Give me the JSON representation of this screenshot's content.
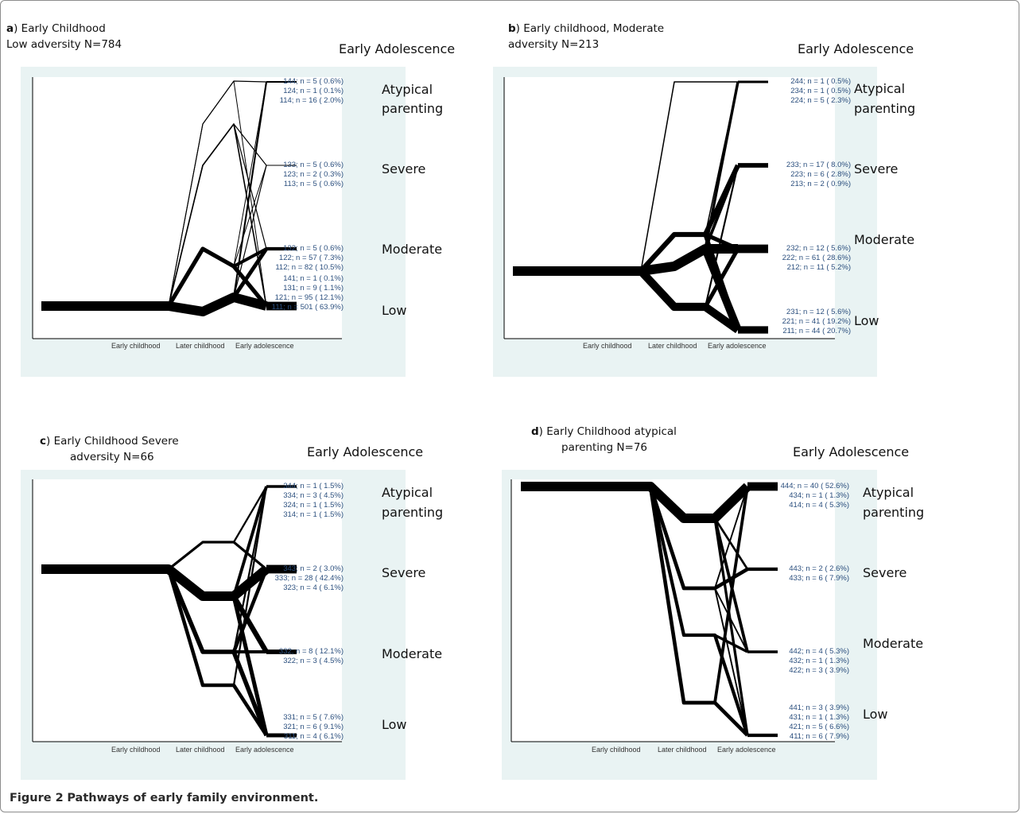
{
  "caption": {
    "label": "Figure 2",
    "text": "Pathways of early family environment."
  },
  "colors": {
    "panel_bg": "#e9f3f3",
    "line": "#000000",
    "label_blue": "#2b4f7e"
  },
  "chart_data": [
    {
      "type": "line",
      "panel_letter": "a",
      "title_line1": ") Early Childhood",
      "title_line2": "Low adversity N=784",
      "header": "Early Adolescence",
      "x": [
        "Early childhood",
        "Later childhood",
        "Early adolescence"
      ],
      "categories": [
        "Atypical parenting",
        "Severe",
        "Moderate",
        "Low"
      ],
      "start_level": 1,
      "paths": [
        {
          "code": "144",
          "n": 5,
          "pct": "0.6%",
          "levels": [
            1,
            4,
            4,
            4
          ]
        },
        {
          "code": "124",
          "n": 1,
          "pct": "0.1%",
          "levels": [
            1,
            2,
            4,
            4
          ]
        },
        {
          "code": "114",
          "n": 16,
          "pct": "2.0%",
          "levels": [
            1,
            1,
            4,
            4
          ]
        },
        {
          "code": "133",
          "n": 5,
          "pct": "0.6%",
          "levels": [
            1,
            3,
            3,
            3
          ]
        },
        {
          "code": "123",
          "n": 2,
          "pct": "0.3%",
          "levels": [
            1,
            2,
            3,
            3
          ]
        },
        {
          "code": "113",
          "n": 5,
          "pct": "0.6%",
          "levels": [
            1,
            1,
            3,
            3
          ]
        },
        {
          "code": "132",
          "n": 5,
          "pct": "0.6%",
          "levels": [
            1,
            3,
            2,
            2
          ]
        },
        {
          "code": "122",
          "n": 57,
          "pct": "7.3%",
          "levels": [
            1,
            2,
            2,
            2
          ]
        },
        {
          "code": "112",
          "n": 82,
          "pct": "10.5%",
          "levels": [
            1,
            1,
            2,
            2
          ]
        },
        {
          "code": "141",
          "n": 1,
          "pct": "0.1%",
          "levels": [
            1,
            4,
            1,
            1
          ]
        },
        {
          "code": "131",
          "n": 9,
          "pct": "1.1%",
          "levels": [
            1,
            3,
            1,
            1
          ]
        },
        {
          "code": "121",
          "n": 95,
          "pct": "12.1%",
          "levels": [
            1,
            2,
            1,
            1
          ]
        },
        {
          "code": "111",
          "n": 501,
          "pct": "63.9%",
          "levels": [
            1,
            1,
            1,
            1
          ]
        }
      ]
    },
    {
      "type": "line",
      "panel_letter": "b",
      "title_line1": ") Early childhood, Moderate",
      "title_line2": "adversity N=213",
      "header": "Early Adolescence",
      "x": [
        "Early childhood",
        "Later childhood",
        "Early adolescence"
      ],
      "categories": [
        "Atypical parenting",
        "Severe",
        "Moderate",
        "Low"
      ],
      "start_level": 2,
      "paths": [
        {
          "code": "244",
          "n": 1,
          "pct": "0.5%",
          "levels": [
            2,
            4,
            4,
            4
          ]
        },
        {
          "code": "234",
          "n": 1,
          "pct": "0.5%",
          "levels": [
            2,
            3,
            4,
            4
          ]
        },
        {
          "code": "224",
          "n": 5,
          "pct": "2.3%",
          "levels": [
            2,
            2,
            4,
            4
          ]
        },
        {
          "code": "233",
          "n": 17,
          "pct": "8.0%",
          "levels": [
            2,
            3,
            3,
            3
          ]
        },
        {
          "code": "223",
          "n": 6,
          "pct": "2.8%",
          "levels": [
            2,
            2,
            3,
            3
          ]
        },
        {
          "code": "213",
          "n": 2,
          "pct": "0.9%",
          "levels": [
            2,
            1,
            3,
            3
          ]
        },
        {
          "code": "232",
          "n": 12,
          "pct": "5.6%",
          "levels": [
            2,
            3,
            2,
            2
          ]
        },
        {
          "code": "222",
          "n": 61,
          "pct": "28.6%",
          "levels": [
            2,
            2,
            2,
            2
          ]
        },
        {
          "code": "212",
          "n": 11,
          "pct": "5.2%",
          "levels": [
            2,
            1,
            2,
            2
          ]
        },
        {
          "code": "231",
          "n": 12,
          "pct": "5.6%",
          "levels": [
            2,
            3,
            1,
            1
          ]
        },
        {
          "code": "221",
          "n": 41,
          "pct": "19.2%",
          "levels": [
            2,
            2,
            1,
            1
          ]
        },
        {
          "code": "211",
          "n": 44,
          "pct": "20.7%",
          "levels": [
            2,
            1,
            1,
            1
          ]
        }
      ]
    },
    {
      "type": "line",
      "panel_letter": "c",
      "title_line1": ") Early Childhood  Severe",
      "title_line2": "adversity N=66",
      "header": "Early Adolescence",
      "x": [
        "Early childhood",
        "Later childhood",
        "Early adolescence"
      ],
      "categories": [
        "Atypical parenting",
        "Severe",
        "Moderate",
        "Low"
      ],
      "start_level": 3,
      "paths": [
        {
          "code": "344",
          "n": 1,
          "pct": "1.5%",
          "levels": [
            3,
            4,
            4,
            4
          ]
        },
        {
          "code": "334",
          "n": 3,
          "pct": "4.5%",
          "levels": [
            3,
            3,
            4,
            4
          ]
        },
        {
          "code": "324",
          "n": 1,
          "pct": "1.5%",
          "levels": [
            3,
            2,
            4,
            4
          ]
        },
        {
          "code": "314",
          "n": 1,
          "pct": "1.5%",
          "levels": [
            3,
            1,
            4,
            4
          ]
        },
        {
          "code": "343",
          "n": 2,
          "pct": "3.0%",
          "levels": [
            3,
            4,
            3,
            3
          ]
        },
        {
          "code": "333",
          "n": 28,
          "pct": "42.4%",
          "levels": [
            3,
            3,
            3,
            3
          ]
        },
        {
          "code": "323",
          "n": 4,
          "pct": "6.1%",
          "levels": [
            3,
            2,
            3,
            3
          ]
        },
        {
          "code": "332",
          "n": 8,
          "pct": "12.1%",
          "levels": [
            3,
            3,
            2,
            2
          ]
        },
        {
          "code": "322",
          "n": 3,
          "pct": "4.5%",
          "levels": [
            3,
            2,
            2,
            2
          ]
        },
        {
          "code": "331",
          "n": 5,
          "pct": "7.6%",
          "levels": [
            3,
            3,
            1,
            1
          ]
        },
        {
          "code": "321",
          "n": 6,
          "pct": "9.1%",
          "levels": [
            3,
            2,
            1,
            1
          ]
        },
        {
          "code": "311",
          "n": 4,
          "pct": "6.1%",
          "levels": [
            3,
            1,
            1,
            1
          ]
        }
      ]
    },
    {
      "type": "line",
      "panel_letter": "d",
      "title_line1": ") Early Childhood atypical",
      "title_line2": "parenting N=76",
      "header": "Early Adolescence",
      "x": [
        "Early childhood",
        "Later childhood",
        "Early adolescence"
      ],
      "categories": [
        "Atypical parenting",
        "Severe",
        "Moderate",
        "Low"
      ],
      "start_level": 4,
      "paths": [
        {
          "code": "444",
          "n": 40,
          "pct": "52.6%",
          "levels": [
            4,
            4,
            4,
            4
          ]
        },
        {
          "code": "434",
          "n": 1,
          "pct": "1.3%",
          "levels": [
            4,
            3,
            4,
            4
          ]
        },
        {
          "code": "414",
          "n": 4,
          "pct": "5.3%",
          "levels": [
            4,
            1,
            4,
            4
          ]
        },
        {
          "code": "443",
          "n": 2,
          "pct": "2.6%",
          "levels": [
            4,
            4,
            3,
            3
          ]
        },
        {
          "code": "433",
          "n": 6,
          "pct": "7.9%",
          "levels": [
            4,
            3,
            3,
            3
          ]
        },
        {
          "code": "442",
          "n": 4,
          "pct": "5.3%",
          "levels": [
            4,
            4,
            2,
            2
          ]
        },
        {
          "code": "432",
          "n": 1,
          "pct": "1.3%",
          "levels": [
            4,
            3,
            2,
            2
          ]
        },
        {
          "code": "422",
          "n": 3,
          "pct": "3.9%",
          "levels": [
            4,
            2,
            2,
            2
          ]
        },
        {
          "code": "441",
          "n": 3,
          "pct": "3.9%",
          "levels": [
            4,
            4,
            1,
            1
          ]
        },
        {
          "code": "431",
          "n": 1,
          "pct": "1.3%",
          "levels": [
            4,
            3,
            1,
            1
          ]
        },
        {
          "code": "421",
          "n": 5,
          "pct": "6.6%",
          "levels": [
            4,
            2,
            1,
            1
          ]
        },
        {
          "code": "411",
          "n": 6,
          "pct": "7.9%",
          "levels": [
            4,
            1,
            1,
            1
          ]
        }
      ]
    }
  ]
}
